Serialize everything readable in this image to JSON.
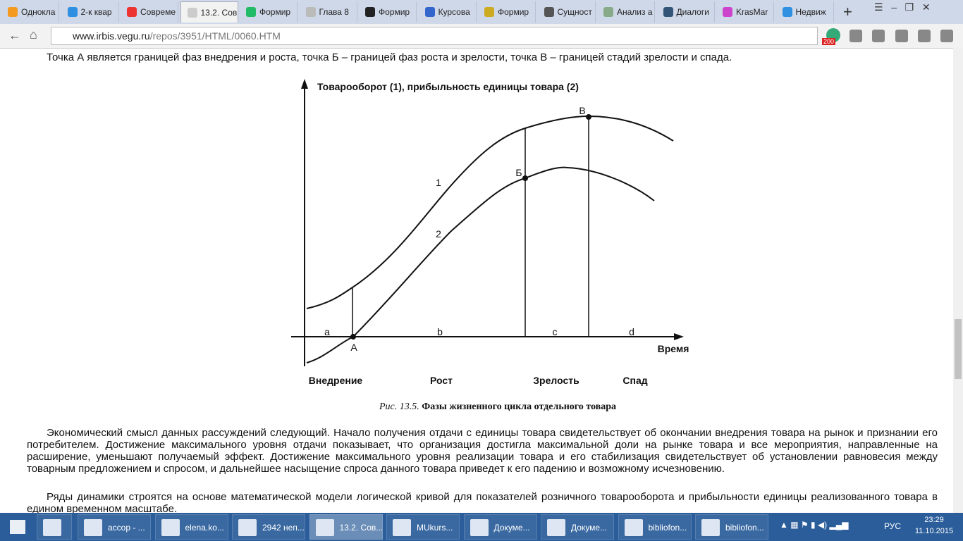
{
  "tabs": [
    "Однокла",
    "2-к квар",
    "Совреме",
    "13.2. Сов",
    "Формир",
    "Глава 8",
    "Формир",
    "Курсова",
    "Формир",
    "Сущност",
    "Анализ а",
    "Диалоги",
    "KrasMar",
    "Недвиж"
  ],
  "address": {
    "host": "www.irbis.vegu.ru",
    "path": "/repos/3951/HTML/0060.HTM"
  },
  "badge": "200",
  "document": {
    "paragraph_1": "Точка А является границей фаз внедрения и роста, точка Б – границей фаз роста и зрелости, точка В – границей стадий зрелости и спада.",
    "figure": {
      "y_axis_label": "Товарооборот (1), прибыльность единицы товара (2)",
      "x_axis_label": "Время",
      "curve_labels": [
        "1",
        "2"
      ],
      "points": [
        "А",
        "Б",
        "В"
      ],
      "segments": [
        "a",
        "b",
        "c",
        "d"
      ],
      "phases": [
        "Внедрение",
        "Рост",
        "Зрелость",
        "Спад"
      ],
      "caption_number": "Рис. 13.5.",
      "caption_text": "Фазы жизненного цикла отдельного товара"
    },
    "paragraph_2": "Экономический смысл данных рассуждений следующий. Начало получения отдачи с единицы товара свидетельствует об окончании внедрения товара на рынок и признании его потребителем. Достижение максимального уровня отдачи показывает, что организация достигла максимальной доли на рынке товара и все мероприятия, направленные на расширение, уменьшают получаемый эффект. Достижение максимального уровня реализации товара и его стабилизация свидетельствует об установлении равновесия между товарным предложением и спросом, и дальнейшее насыщение спроса данного товара приведет к его падению и возможному исчезновению.",
    "paragraph_3": "Ряды динамики строятся на основе математической модели логической кривой для показателей розничного товарооборота и прибыльности единицы реализованного товара в едином временном масштабе."
  },
  "taskbar": {
    "items": [
      "accop - ...",
      "elena.ko...",
      "2942 неп...",
      "13.2. Сов...",
      "MUkurs...",
      "Докуме...",
      "Докуме...",
      "bibliofon...",
      "bibliofon..."
    ],
    "language": "РУС",
    "time": "23:29",
    "date": "11.10.2015"
  }
}
